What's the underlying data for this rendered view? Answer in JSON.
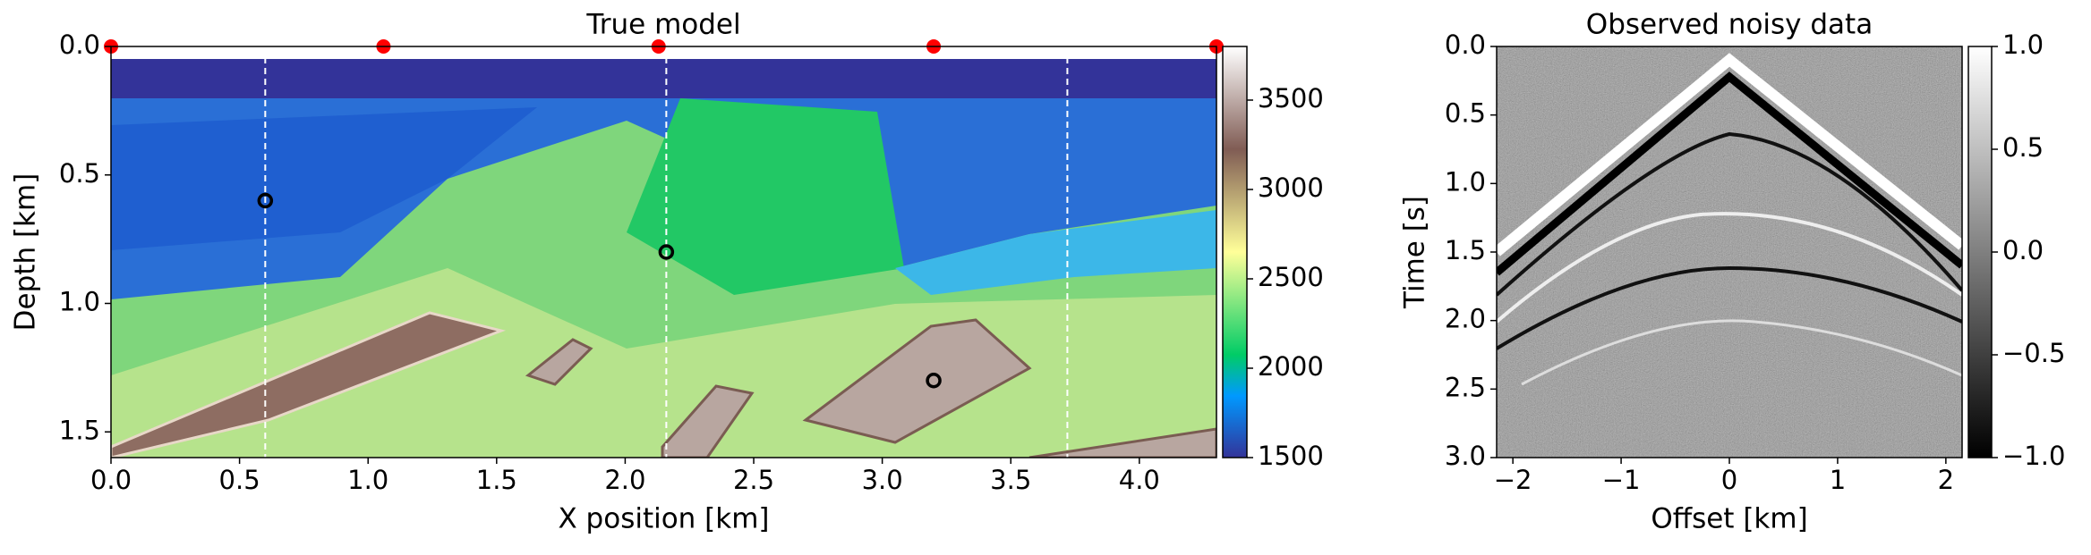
{
  "chart_data": [
    {
      "type": "heatmap",
      "title": "True model",
      "xlabel": "X position [km]",
      "ylabel": "Depth [km]",
      "xlim": [
        0,
        4.3
      ],
      "ylim": [
        1.6,
        0
      ],
      "xticks": [
        {
          "value": 0,
          "label": "0.0"
        },
        {
          "value": 0.5,
          "label": "0.5"
        },
        {
          "value": 1,
          "label": "1.0"
        },
        {
          "value": 1.5,
          "label": "1.5"
        },
        {
          "value": 2,
          "label": "2.0"
        },
        {
          "value": 2.5,
          "label": "2.5"
        },
        {
          "value": 3,
          "label": "3.0"
        },
        {
          "value": 3.5,
          "label": "3.5"
        },
        {
          "value": 4,
          "label": "4.0"
        }
      ],
      "yticks": [
        {
          "value": 0,
          "label": "0.0"
        },
        {
          "value": 0.5,
          "label": "0.5"
        },
        {
          "value": 1,
          "label": "1.0"
        },
        {
          "value": 1.5,
          "label": "1.5"
        }
      ],
      "clim": [
        1500,
        3800
      ],
      "cticks": [
        1500,
        2000,
        2500,
        3000,
        3500
      ],
      "colormap": "terrain",
      "sources": {
        "x": [
          0,
          1.06,
          2.13,
          3.2,
          4.3
        ],
        "y": [
          0,
          0,
          0,
          0,
          0
        ],
        "color": "#ff0000"
      },
      "points": {
        "x": [
          0.6,
          2.16,
          3.2
        ],
        "y": [
          0.6,
          0.8,
          1.3
        ],
        "color": "#000000"
      },
      "vlines": [
        0.6,
        2.16,
        3.72
      ]
    },
    {
      "type": "heatmap",
      "title": "Observed noisy data",
      "xlabel": "Offset [km]",
      "ylabel": "Time [s]",
      "xlim": [
        -2.15,
        2.15
      ],
      "ylim": [
        3.0,
        0
      ],
      "xticks": [
        {
          "value": -2,
          "label": "−2"
        },
        {
          "value": -1,
          "label": "−1"
        },
        0,
        1,
        2
      ],
      "yticks": [
        {
          "value": 0,
          "label": "0.0"
        },
        {
          "value": 0.5,
          "label": "0.5"
        },
        {
          "value": 1,
          "label": "1.0"
        },
        {
          "value": 1.5,
          "label": "1.5"
        },
        {
          "value": 2,
          "label": "2.0"
        },
        {
          "value": 2.5,
          "label": "2.5"
        },
        {
          "value": 3,
          "label": "3.0"
        }
      ],
      "clim": [
        -1,
        1
      ],
      "cticks": [
        {
          "value": -1,
          "label": "−1.0"
        },
        {
          "value": -0.5,
          "label": "−0.5"
        },
        {
          "value": 0,
          "label": "0.0"
        },
        {
          "value": 0.5,
          "label": "0.5"
        },
        {
          "value": 1,
          "label": "1.0"
        }
      ],
      "colormap": "gray"
    }
  ]
}
